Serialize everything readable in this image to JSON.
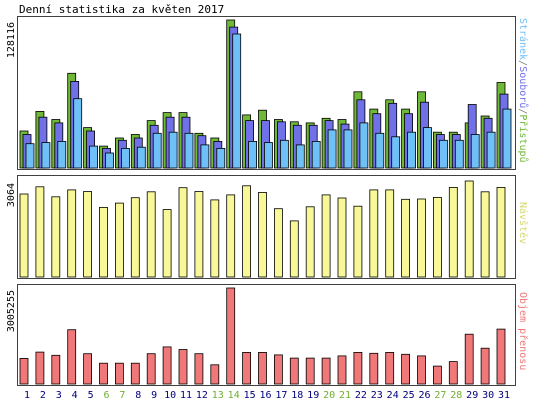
{
  "title": "Denní statistika za květen 2017",
  "legend": {
    "pristupu": "Přístupů",
    "souboru": "Souborů",
    "stranek": "Stránek",
    "sep": "/",
    "navstev": "Návštěv",
    "objem": "Objem přenosu"
  },
  "colors": {
    "pristupu": "#70b838",
    "souboru": "#7070e8",
    "stranek": "#70c0f8",
    "navstev": "#f8f898",
    "objem": "#f07878",
    "weekend_label": "#70b030",
    "weekday_label": "#000080",
    "panel_bg": "#ffffff",
    "border": "#404040"
  },
  "chart_data": [
    {
      "type": "bar",
      "name": "hits-files-pages",
      "y_max_label": "128116",
      "ylim": [
        0,
        128116
      ],
      "categories": [
        "1",
        "2",
        "3",
        "4",
        "5",
        "6",
        "7",
        "8",
        "9",
        "10",
        "11",
        "12",
        "13",
        "14",
        "15",
        "16",
        "17",
        "18",
        "19",
        "20",
        "21",
        "22",
        "23",
        "24",
        "25",
        "26",
        "27",
        "28",
        "29",
        "30",
        "31"
      ],
      "series": [
        {
          "name": "Přístupů",
          "values": [
            32000,
            49000,
            42000,
            82000,
            35000,
            19000,
            26000,
            29000,
            41000,
            48000,
            48000,
            30000,
            26000,
            128116,
            46000,
            50000,
            42000,
            40000,
            39000,
            43000,
            42000,
            66000,
            51000,
            59000,
            51000,
            66000,
            31000,
            31000,
            39000,
            45000,
            74000
          ]
        },
        {
          "name": "Souborů",
          "values": [
            29000,
            44000,
            39000,
            75000,
            32000,
            17000,
            24000,
            26000,
            37000,
            44000,
            44000,
            28000,
            23000,
            122000,
            41000,
            41000,
            40000,
            37000,
            37000,
            41000,
            38000,
            59000,
            47000,
            56000,
            47000,
            57000,
            29000,
            29000,
            55000,
            43000,
            64000
          ]
        },
        {
          "name": "Stránek",
          "values": [
            21000,
            22000,
            23000,
            60000,
            19000,
            13000,
            17000,
            18000,
            30000,
            31000,
            30000,
            20000,
            17000,
            116000,
            23000,
            22000,
            24000,
            20000,
            23000,
            33000,
            33000,
            39000,
            30000,
            27000,
            31000,
            35000,
            24000,
            24000,
            29000,
            31000,
            51000
          ]
        }
      ]
    },
    {
      "type": "bar",
      "name": "visits",
      "y_max_label": "3064",
      "ylim": [
        0,
        3064
      ],
      "categories": [
        "1",
        "2",
        "3",
        "4",
        "5",
        "6",
        "7",
        "8",
        "9",
        "10",
        "11",
        "12",
        "13",
        "14",
        "15",
        "16",
        "17",
        "18",
        "19",
        "20",
        "21",
        "22",
        "23",
        "24",
        "25",
        "26",
        "27",
        "28",
        "29",
        "30",
        "31"
      ],
      "series": [
        {
          "name": "Návštěv",
          "values": [
            2650,
            2880,
            2560,
            2780,
            2730,
            2220,
            2360,
            2530,
            2720,
            2150,
            2850,
            2730,
            2460,
            2620,
            2910,
            2700,
            2180,
            1790,
            2240,
            2620,
            2520,
            2260,
            2780,
            2780,
            2480,
            2490,
            2540,
            2860,
            3064,
            2720,
            2860
          ]
        }
      ]
    },
    {
      "type": "bar",
      "name": "traffic",
      "y_max_label": "3005255",
      "ylim": [
        0,
        3005255
      ],
      "categories": [
        "1",
        "2",
        "3",
        "4",
        "5",
        "6",
        "7",
        "8",
        "9",
        "10",
        "11",
        "12",
        "13",
        "14",
        "15",
        "16",
        "17",
        "18",
        "19",
        "20",
        "21",
        "22",
        "23",
        "24",
        "25",
        "26",
        "27",
        "28",
        "29",
        "30",
        "31"
      ],
      "series": [
        {
          "name": "Objem přenosu",
          "values": [
            800000,
            1000000,
            900000,
            1700000,
            950000,
            650000,
            650000,
            650000,
            950000,
            1160000,
            1080000,
            950000,
            600000,
            3005255,
            990000,
            990000,
            910000,
            810000,
            810000,
            810000,
            880000,
            990000,
            960000,
            990000,
            930000,
            880000,
            560000,
            700000,
            1560000,
            1120000,
            1720000
          ]
        }
      ]
    }
  ]
}
